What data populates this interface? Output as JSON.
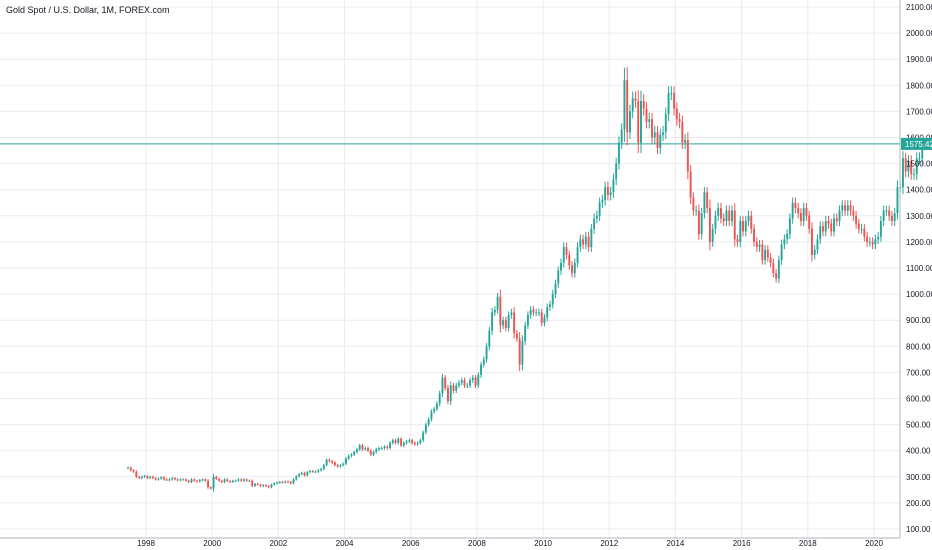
{
  "chart_data": {
    "type": "candlestick",
    "title": "Gold Spot / U.S. Dollar, 1M, FOREX.com",
    "last_price_label": "1575.42",
    "last_price": 1575.42,
    "ylim": [
      100,
      2100
    ],
    "yticks": [
      "2100.00",
      "2000.00",
      "1900.00",
      "1800.00",
      "1700.00",
      "1600.00",
      "1500.00",
      "1400.00",
      "1300.00",
      "1200.00",
      "1100.00",
      "1000.00",
      "900.00",
      "800.00",
      "700.00",
      "600.00",
      "500.00",
      "400.00",
      "300.00",
      "200.00",
      "100.00"
    ],
    "ytick_values": [
      2100,
      2000,
      1900,
      1800,
      1700,
      1600,
      1500,
      1400,
      1300,
      1200,
      1100,
      1000,
      900,
      800,
      700,
      600,
      500,
      400,
      300,
      200,
      100
    ],
    "xticks": [
      "1998",
      "2000",
      "2002",
      "2004",
      "2006",
      "2008",
      "2010",
      "2012",
      "2014",
      "2016",
      "2018",
      "2020"
    ],
    "xtick_years": [
      1998,
      2000,
      2002,
      2004,
      2006,
      2008,
      2010,
      2012,
      2014,
      2016,
      2018,
      2020
    ],
    "x_range": [
      1994.0,
      2021.0
    ],
    "grid": true,
    "colors": {
      "up": "#26a69a",
      "down": "#ef5350",
      "grid": "#e9ecf2",
      "price_line": "#26a69a",
      "axis_text": "#131722"
    },
    "series": [
      {
        "start": "1997-06",
        "close": [
          335,
          325,
          320,
          300,
          295,
          300,
          303,
          295,
          300,
          295,
          290,
          293,
          298,
          290,
          288,
          290,
          295,
          290,
          287,
          290,
          290,
          285,
          280,
          290,
          285,
          282,
          288,
          290,
          285,
          260,
          255,
          300,
          292,
          285,
          280,
          290,
          284,
          280,
          285,
          285,
          290,
          285,
          290,
          285,
          285,
          265,
          273,
          270,
          265,
          268,
          265,
          260,
          270,
          275,
          278,
          280,
          279,
          282,
          280,
          275,
          290,
          302,
          310,
          315,
          305,
          318,
          322,
          320,
          320,
          325,
          330,
          345,
          365,
          360,
          355,
          345,
          340,
          345,
          350,
          370,
          380,
          385,
          395,
          405,
          420,
          405,
          410,
          400,
          385,
          395,
          405,
          410,
          410,
          415,
          410,
          430,
          440,
          430,
          445,
          420,
          430,
          435,
          440,
          430,
          425,
          430,
          440,
          470,
          500,
          520,
          550,
          560,
          580,
          620,
          680,
          640,
          590,
          650,
          630,
          650,
          660,
          670,
          650,
          650,
          670,
          680,
          650,
          690,
          730,
          750,
          800,
          860,
          930,
          940,
          990,
          880,
          900,
          870,
          920,
          930,
          850,
          830,
          730,
          820,
          880,
          920,
          940,
          930,
          930,
          930,
          890,
          910,
          950,
          960,
          1000,
          1040,
          1090,
          1120,
          1180,
          1150,
          1110,
          1080,
          1120,
          1180,
          1210,
          1190,
          1220,
          1180,
          1250,
          1290,
          1300,
          1350,
          1360,
          1410,
          1380,
          1390,
          1440,
          1500,
          1580,
          1630,
          1820,
          1620,
          1700,
          1750,
          1740,
          1580,
          1740,
          1710,
          1660,
          1670,
          1600,
          1620,
          1560,
          1610,
          1620,
          1690,
          1770,
          1770,
          1710,
          1670,
          1660,
          1580,
          1590,
          1470,
          1370,
          1320,
          1320,
          1230,
          1310,
          1390,
          1330,
          1200,
          1250,
          1300,
          1330,
          1290,
          1280,
          1320,
          1280,
          1320,
          1210,
          1200,
          1280,
          1240,
          1280,
          1300,
          1250,
          1200,
          1180,
          1190,
          1130,
          1170,
          1140,
          1120,
          1080,
          1060,
          1130,
          1190,
          1210,
          1230,
          1290,
          1350,
          1330,
          1310,
          1280,
          1330,
          1300,
          1250,
          1150,
          1170,
          1210,
          1260,
          1240,
          1280,
          1270,
          1240,
          1290,
          1280,
          1320,
          1340,
          1320,
          1340,
          1320,
          1300,
          1270,
          1250,
          1250,
          1220,
          1200,
          1200,
          1190,
          1210,
          1220,
          1280,
          1320,
          1320,
          1300,
          1280,
          1310,
          1410,
          1410,
          1520,
          1470,
          1510,
          1460,
          1460,
          1520,
          1520,
          1575
        ]
      }
    ]
  }
}
